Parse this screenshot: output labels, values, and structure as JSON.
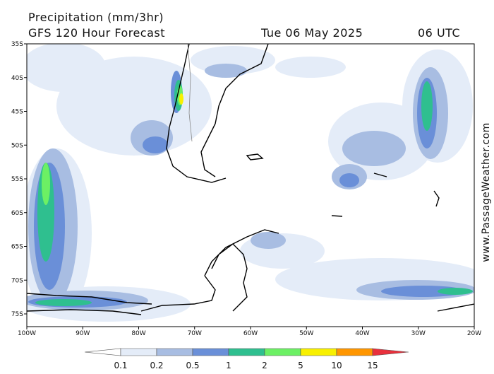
{
  "header": {
    "title": "Precipitation (mm/3hr)",
    "subtitle": "GFS 120 Hour Forecast",
    "date": "Tue 06 May 2025",
    "time": "06 UTC"
  },
  "map": {
    "lat_labels": [
      "35S",
      "40S",
      "45S",
      "50S",
      "55S",
      "60S",
      "65S",
      "70S",
      "75S"
    ],
    "lon_labels": [
      "100W",
      "90W",
      "80W",
      "70W",
      "60W",
      "50W",
      "40W",
      "30W",
      "20W"
    ]
  },
  "legend": {
    "levels": [
      0.1,
      0.2,
      0.5,
      1,
      2,
      5,
      10,
      15
    ],
    "colors": [
      "#ffffff",
      "#e4ecf8",
      "#a8bde2",
      "#6a8fd8",
      "#2fbf8f",
      "#6cf064",
      "#f8f000",
      "#ff9600",
      "#e8303c"
    ]
  },
  "watermark": "www.PassageWeather.com"
}
